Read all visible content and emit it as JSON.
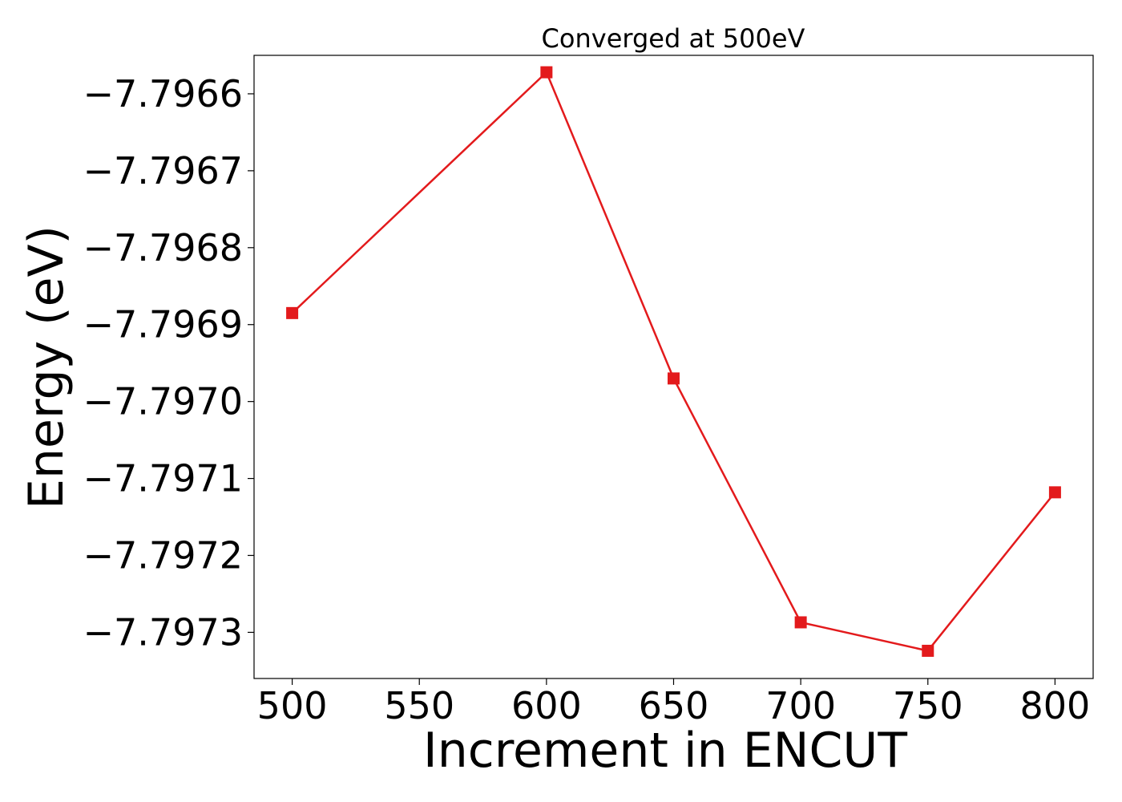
{
  "chart_data": {
    "type": "line",
    "title": "Converged at 500eV",
    "xlabel": "Increment in ENCUT",
    "ylabel": "Energy (eV)",
    "xlim": [
      485,
      815
    ],
    "ylim": [
      -7.79736,
      -7.79655
    ],
    "xticks": [
      500,
      550,
      600,
      650,
      700,
      750,
      800
    ],
    "xtick_labels": [
      "500",
      "550",
      "600",
      "650",
      "700",
      "750",
      "800"
    ],
    "yticks": [
      -7.7966,
      -7.7967,
      -7.7968,
      -7.7969,
      -7.797,
      -7.7971,
      -7.7972,
      -7.7973
    ],
    "ytick_labels": [
      "−7.7966",
      "−7.7967",
      "−7.7968",
      "−7.7969",
      "−7.7970",
      "−7.7971",
      "−7.7972",
      "−7.7973"
    ],
    "grid": false,
    "series": [
      {
        "color": "#e31a1c",
        "marker": "square",
        "x": [
          500,
          600,
          650,
          700,
          750,
          800
        ],
        "y": [
          -7.796885,
          -7.796572,
          -7.79697,
          -7.797287,
          -7.797324,
          -7.797118
        ]
      }
    ]
  }
}
